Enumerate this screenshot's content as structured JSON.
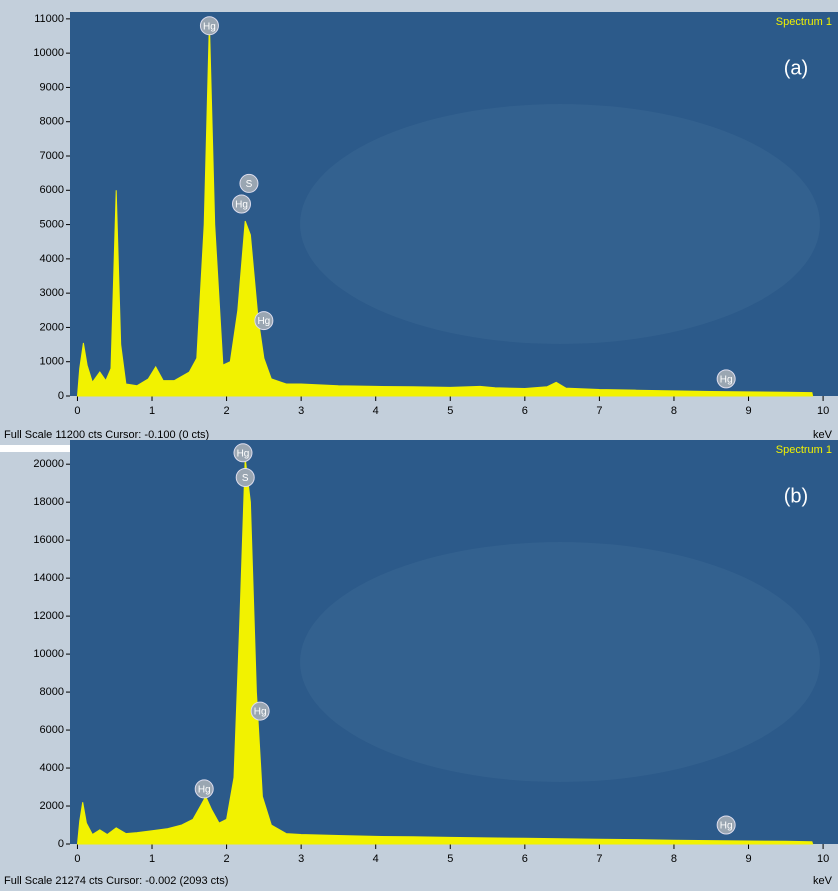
{
  "chart_data": [
    {
      "type": "area",
      "panel_label": "(a)",
      "spectrum_label": "Spectrum 1",
      "footer": "Full Scale 11200 cts Cursor: -0.100  (0 cts)",
      "x_unit": "keV",
      "color": "#f2f200",
      "xlim": [
        -0.1,
        10.2
      ],
      "ylim": [
        0,
        11200
      ],
      "xticks": [
        0,
        1,
        2,
        3,
        4,
        5,
        6,
        7,
        8,
        9,
        10
      ],
      "yticks": [
        0,
        1000,
        2000,
        3000,
        4000,
        5000,
        6000,
        7000,
        8000,
        9000,
        10000,
        11000
      ],
      "x": [
        0,
        0.03,
        0.08,
        0.13,
        0.2,
        0.3,
        0.38,
        0.45,
        0.52,
        0.58,
        0.65,
        0.8,
        0.95,
        1.05,
        1.15,
        1.3,
        1.5,
        1.6,
        1.7,
        1.77,
        1.84,
        1.95,
        2.05,
        2.15,
        2.25,
        2.32,
        2.42,
        2.5,
        2.6,
        2.8,
        3.0,
        3.5,
        4.0,
        4.5,
        5.0,
        5.4,
        5.6,
        6.0,
        6.3,
        6.42,
        6.55,
        7.0,
        7.5,
        8.0,
        8.5,
        9.0,
        9.5,
        9.85,
        9.86
      ],
      "values": [
        0,
        800,
        1550,
        900,
        400,
        700,
        450,
        800,
        6000,
        1500,
        350,
        300,
        500,
        850,
        450,
        450,
        700,
        1100,
        5000,
        10900,
        5000,
        900,
        1000,
        2500,
        5100,
        4700,
        2300,
        1100,
        500,
        350,
        350,
        300,
        280,
        270,
        250,
        280,
        240,
        220,
        270,
        400,
        230,
        190,
        170,
        150,
        130,
        120,
        110,
        100,
        0
      ],
      "annotations": [
        {
          "text": "Hg",
          "x": 1.77,
          "y": 10800
        },
        {
          "text": "S",
          "x": 2.3,
          "y": 6200
        },
        {
          "text": "Hg",
          "x": 2.2,
          "y": 5600
        },
        {
          "text": "Hg",
          "x": 2.5,
          "y": 2200
        },
        {
          "text": "Hg",
          "x": 8.7,
          "y": 500
        }
      ]
    },
    {
      "type": "area",
      "panel_label": "(b)",
      "spectrum_label": "Spectrum 1",
      "footer": "Full Scale 21274 cts Cursor: -0.002  (2093 cts)",
      "x_unit": "keV",
      "color": "#f2f200",
      "xlim": [
        -0.1,
        10.2
      ],
      "ylim": [
        0,
        21274
      ],
      "xticks": [
        0,
        1,
        2,
        3,
        4,
        5,
        6,
        7,
        8,
        9,
        10
      ],
      "yticks": [
        0,
        2000,
        4000,
        6000,
        8000,
        10000,
        12000,
        14000,
        16000,
        18000,
        20000
      ],
      "x": [
        0,
        0.03,
        0.07,
        0.12,
        0.2,
        0.3,
        0.4,
        0.52,
        0.65,
        0.8,
        1.0,
        1.2,
        1.4,
        1.55,
        1.65,
        1.72,
        1.8,
        1.9,
        2.0,
        2.1,
        2.18,
        2.25,
        2.32,
        2.4,
        2.48,
        2.6,
        2.8,
        3.0,
        3.5,
        4.0,
        4.5,
        5.0,
        5.5,
        6.0,
        6.5,
        7.0,
        7.5,
        8.0,
        8.5,
        9.0,
        9.5,
        9.85,
        9.86
      ],
      "values": [
        0,
        1200,
        2200,
        1100,
        500,
        750,
        500,
        850,
        550,
        600,
        700,
        800,
        1000,
        1300,
        2000,
        2500,
        1800,
        1100,
        1300,
        3500,
        12000,
        20300,
        18000,
        8000,
        2500,
        1000,
        550,
        500,
        450,
        400,
        380,
        350,
        320,
        300,
        280,
        250,
        230,
        200,
        180,
        160,
        150,
        120,
        0
      ],
      "annotations": [
        {
          "text": "Hg",
          "x": 2.22,
          "y": 20600
        },
        {
          "text": "S",
          "x": 2.25,
          "y": 19300
        },
        {
          "text": "Hg",
          "x": 2.45,
          "y": 7000
        },
        {
          "text": "Hg",
          "x": 1.7,
          "y": 2900
        },
        {
          "text": "Hg",
          "x": 8.7,
          "y": 1000
        }
      ]
    }
  ]
}
